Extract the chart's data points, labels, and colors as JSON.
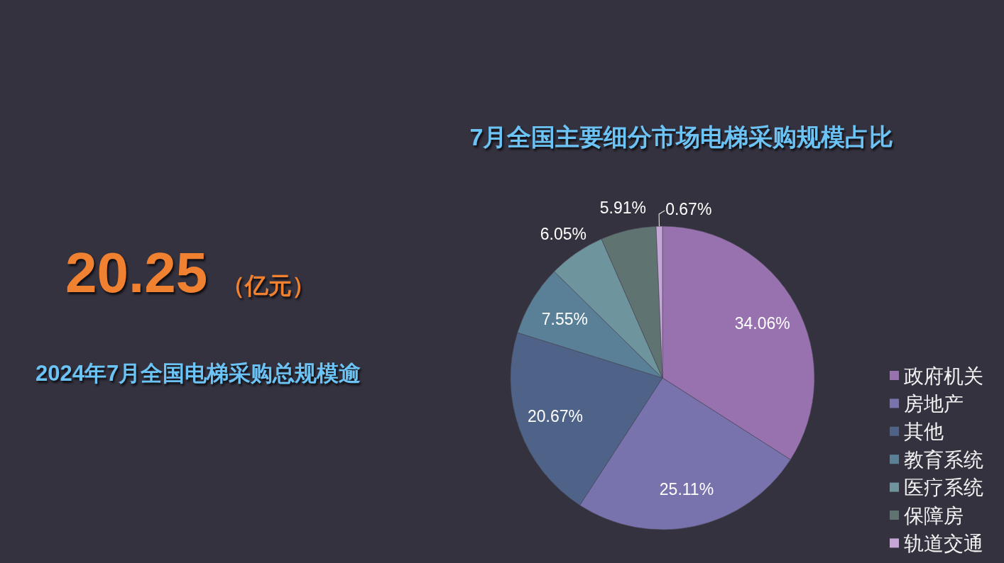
{
  "chart_data": [
    {
      "type": "other",
      "annotations": [
        "20.25",
        "（亿元）",
        "2024年7月全国电梯采购总规模逾"
      ]
    },
    {
      "type": "pie",
      "title": "7月全国主要细分市场电梯采购规模占比",
      "categories": [
        "政府机关",
        "房地产",
        "其他",
        "教育系统",
        "医疗系统",
        "保障房",
        "轨道交通"
      ],
      "values": [
        34.06,
        25.11,
        20.67,
        7.55,
        6.05,
        5.91,
        0.67
      ],
      "colors": [
        "#9872ae",
        "#7873ad",
        "#4f6388",
        "#5a8097",
        "#6e949e",
        "#5f7370",
        "#c5a6d6"
      ],
      "value_labels": [
        "34.06%",
        "25.11%",
        "20.67%",
        "7.55%",
        "6.05%",
        "5.91%",
        "0.67%"
      ],
      "legend": "bottom right"
    }
  ]
}
